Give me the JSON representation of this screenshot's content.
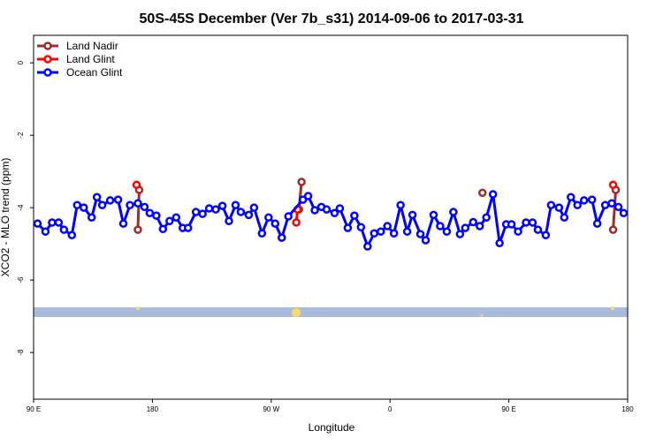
{
  "chart_data": {
    "type": "line",
    "title": "50S-45S December (Ver 7b_s31)   2014-09-06 to 2017-03-31",
    "x_label": "Longitude",
    "y_label": "XCO2 - MLO trend (ppm)",
    "xlim": [
      90,
      540
    ],
    "ylim": [
      0.76,
      -9.29
    ],
    "xticks": [
      {
        "value": 90,
        "label": "90 E"
      },
      180,
      {
        "value": 270,
        "label": "90 W"
      },
      {
        "value": 360,
        "label": "0"
      },
      {
        "value": 450,
        "label": "90 E"
      },
      {
        "value": 540,
        "label": "180"
      }
    ],
    "yticks": [
      0,
      -2,
      -4,
      -6,
      -8
    ],
    "legend": "top-left",
    "series": [
      {
        "name": "Land Nadir",
        "color": "#a52a2a",
        "x": [
          169,
          170,
          291,
          293,
          430,
          529,
          531
        ],
        "values": [
          -4.61,
          -3.51,
          -4.05,
          -3.29,
          -3.59,
          -4.61,
          -3.51
        ]
      },
      {
        "name": "Land Glint",
        "color": "#ff0000",
        "x": [
          168,
          289,
          290,
          529
        ],
        "values": [
          -3.37,
          -4.41,
          -4.05,
          -3.37
        ]
      },
      {
        "name": "Ocean Glint",
        "color": "#0000ff",
        "x": [
          93,
          99,
          104,
          109,
          113,
          119,
          123,
          128,
          134,
          138,
          142,
          148,
          154,
          158,
          163,
          169,
          174,
          178,
          183,
          188,
          193,
          198,
          203,
          207,
          213,
          218,
          223,
          228,
          233,
          238,
          243,
          247,
          253,
          257,
          263,
          268,
          273,
          278,
          283,
          294,
          298,
          303,
          308,
          312,
          318,
          322,
          328,
          333,
          338,
          343,
          348,
          353,
          358,
          363,
          368,
          373,
          377,
          383,
          387,
          393,
          398,
          403,
          408,
          413,
          417,
          423,
          428,
          433,
          438,
          443,
          448,
          452,
          457,
          463,
          468,
          472,
          478,
          482,
          488,
          492,
          497,
          502,
          507,
          513,
          517,
          523,
          528,
          533,
          537
        ],
        "values": [
          -4.44,
          -4.66,
          -4.41,
          -4.41,
          -4.61,
          -4.76,
          -3.93,
          -4.0,
          -4.27,
          -3.71,
          -3.93,
          -3.8,
          -3.78,
          -4.44,
          -3.93,
          -3.88,
          -3.98,
          -4.15,
          -4.22,
          -4.59,
          -4.37,
          -4.27,
          -4.56,
          -4.56,
          -4.12,
          -4.17,
          -4.02,
          -4.05,
          -3.95,
          -4.37,
          -3.93,
          -4.12,
          -4.2,
          -4.0,
          -4.71,
          -4.27,
          -4.44,
          -4.83,
          -4.24,
          -3.78,
          -3.68,
          -4.07,
          -3.98,
          -4.05,
          -4.15,
          -4.02,
          -4.56,
          -4.22,
          -4.54,
          -5.07,
          -4.71,
          -4.66,
          -4.51,
          -4.71,
          -3.93,
          -4.66,
          -4.2,
          -4.73,
          -4.9,
          -4.2,
          -4.51,
          -4.66,
          -4.12,
          -4.73,
          -4.56,
          -4.4,
          -4.51,
          -4.27,
          -3.63,
          -4.98,
          -4.46,
          -4.46,
          -4.66,
          -4.41,
          -4.41,
          -4.61,
          -4.76,
          -3.93,
          -4.0,
          -4.27,
          -3.71,
          -3.93,
          -3.8,
          -3.78,
          -4.44,
          -3.93,
          -3.88,
          -3.98,
          -4.15
        ]
      }
    ]
  }
}
